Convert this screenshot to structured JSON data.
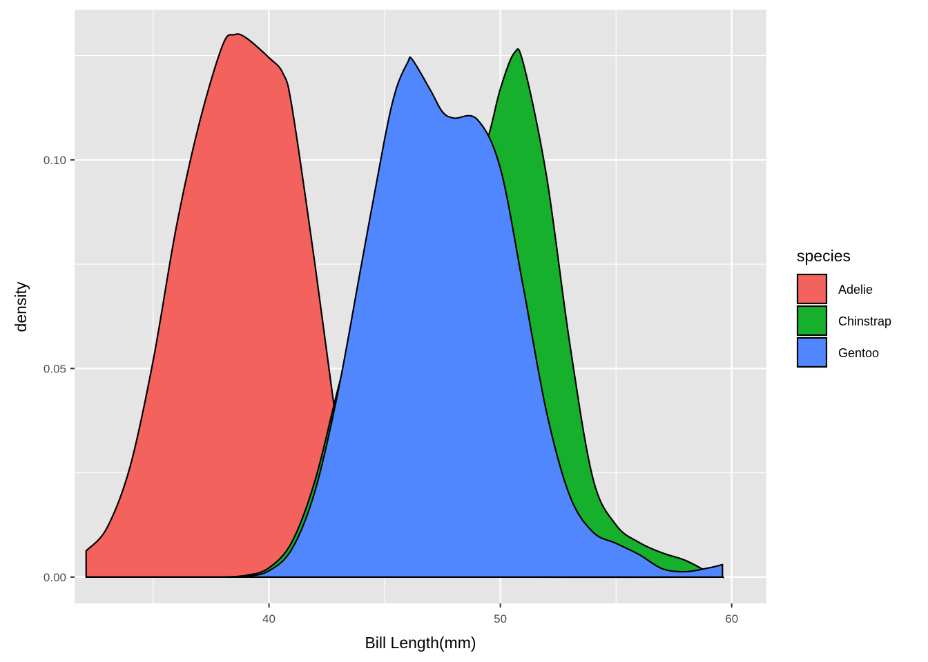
{
  "chart_data": {
    "type": "area",
    "subtype": "density",
    "title": "",
    "xlabel": "Bill Length(mm)",
    "ylabel": "density",
    "xlim": [
      31.6,
      61.5
    ],
    "ylim": [
      -0.0063,
      0.136
    ],
    "x_ticks": [
      40,
      50,
      60
    ],
    "x_tick_labels": [
      "40",
      "50",
      "60"
    ],
    "x_minor_ticks": [
      35,
      45,
      55
    ],
    "y_ticks": [
      0,
      0.05,
      0.1
    ],
    "y_tick_labels": [
      "0.00",
      "0.05",
      "0.10"
    ],
    "y_minor_ticks": [
      0.025,
      0.075,
      0.125
    ],
    "grid": true,
    "legend": {
      "title": "species",
      "position": "right"
    },
    "colors": {
      "panel": "#e5e5e5",
      "grid": "#ffffff",
      "outline": "#000000",
      "tick": "#333333"
    },
    "series": [
      {
        "name": "Adelie",
        "color": "#f4625d",
        "points": [
          [
            32.1,
            0
          ],
          [
            32.1,
            0.0063
          ],
          [
            33,
            0.0118
          ],
          [
            34,
            0.0265
          ],
          [
            35,
            0.052
          ],
          [
            36,
            0.084
          ],
          [
            37,
            0.109
          ],
          [
            38,
            0.1275
          ],
          [
            38.5,
            0.13
          ],
          [
            39,
            0.1293
          ],
          [
            40,
            0.1245
          ],
          [
            40.6,
            0.1208
          ],
          [
            41,
            0.1125
          ],
          [
            42,
            0.0745
          ],
          [
            43,
            0.0333
          ],
          [
            43.5,
            0.018
          ],
          [
            44,
            0.009
          ],
          [
            45,
            0.0024
          ],
          [
            46,
            0.0003
          ],
          [
            47,
            0
          ],
          [
            59.6,
            0
          ]
        ]
      },
      {
        "name": "Chinstrap",
        "color": "#17b02d",
        "points": [
          [
            32.1,
            0
          ],
          [
            38,
            0
          ],
          [
            39,
            0.0004
          ],
          [
            40,
            0.0022
          ],
          [
            41,
            0.0085
          ],
          [
            42,
            0.0233
          ],
          [
            43,
            0.0455
          ],
          [
            44,
            0.066
          ],
          [
            45,
            0.078
          ],
          [
            46,
            0.085
          ],
          [
            47,
            0.09
          ],
          [
            48,
            0.0945
          ],
          [
            49,
            0.1
          ],
          [
            49.5,
            0.106
          ],
          [
            50,
            0.117
          ],
          [
            50.6,
            0.1256
          ],
          [
            51,
            0.123
          ],
          [
            52,
            0.096
          ],
          [
            53,
            0.056
          ],
          [
            54,
            0.0237
          ],
          [
            55,
            0.0125
          ],
          [
            56,
            0.0083
          ],
          [
            57,
            0.0058
          ],
          [
            58,
            0.004
          ],
          [
            59,
            0.0012
          ],
          [
            59.6,
            0
          ],
          [
            59.6,
            0
          ]
        ]
      },
      {
        "name": "Gentoo",
        "color": "#5087ff",
        "points": [
          [
            32.1,
            0
          ],
          [
            38,
            0
          ],
          [
            39,
            0.0002
          ],
          [
            40,
            0.0015
          ],
          [
            41,
            0.0068
          ],
          [
            42,
            0.0208
          ],
          [
            43,
            0.0448
          ],
          [
            44,
            0.075
          ],
          [
            45,
            0.105
          ],
          [
            45.5,
            0.117
          ],
          [
            46,
            0.1234
          ],
          [
            46.2,
            0.124
          ],
          [
            47,
            0.1165
          ],
          [
            47.5,
            0.1115
          ],
          [
            48,
            0.11
          ],
          [
            49,
            0.1097
          ],
          [
            50,
            0.098
          ],
          [
            51,
            0.0693
          ],
          [
            52,
            0.0395
          ],
          [
            53,
            0.0195
          ],
          [
            54,
            0.0108
          ],
          [
            55,
            0.0081
          ],
          [
            56,
            0.0054
          ],
          [
            57,
            0.002
          ],
          [
            58,
            0.0013
          ],
          [
            59,
            0.0022
          ],
          [
            59.6,
            0.003
          ]
        ]
      }
    ]
  }
}
